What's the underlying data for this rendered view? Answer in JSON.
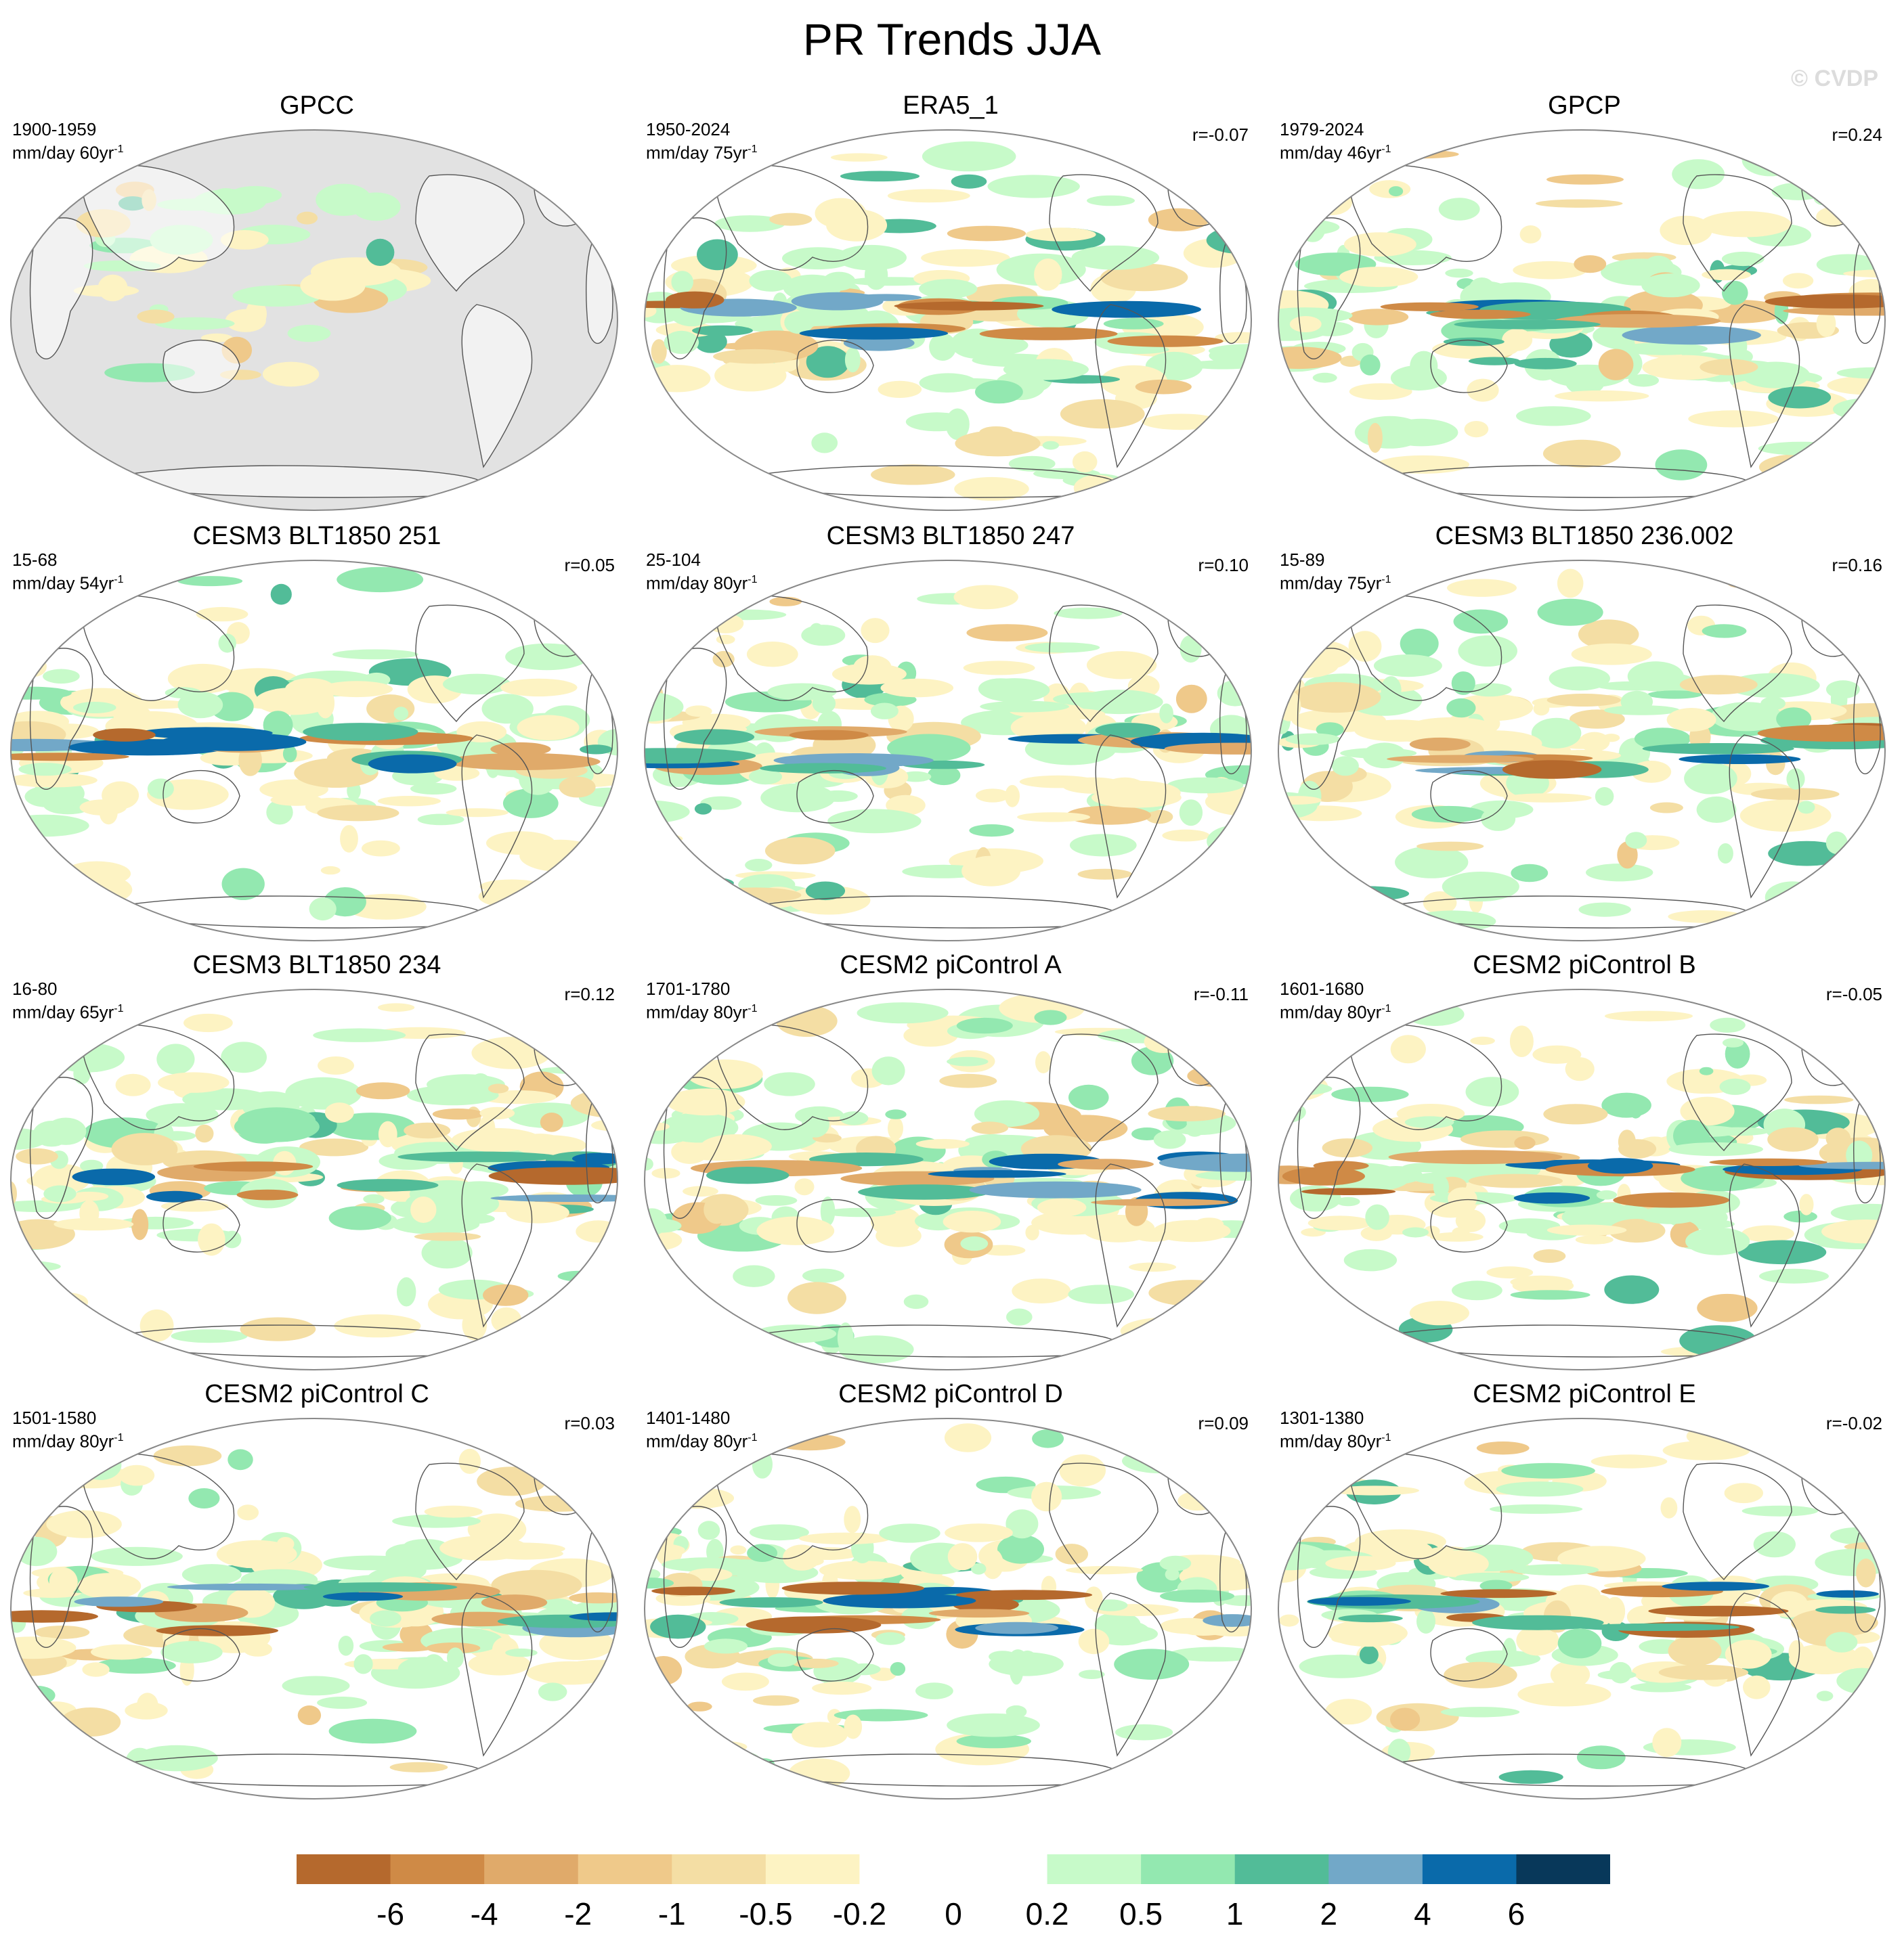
{
  "title": "PR Trends JJA",
  "watermark": "© CVDP",
  "colors": {
    "land_mask": "#e2e2e2",
    "outline": "#888888"
  },
  "panels": [
    {
      "title": "GPCC",
      "period": "1900-1959",
      "units_prefix": "mm/day 60yr",
      "units_exp": "-1",
      "corr": "",
      "masked": true
    },
    {
      "title": "ERA5_1",
      "period": "1950-2024",
      "units_prefix": "mm/day 75yr",
      "units_exp": "-1",
      "corr": "r=-0.07",
      "masked": false
    },
    {
      "title": "GPCP",
      "period": "1979-2024",
      "units_prefix": "mm/day 46yr",
      "units_exp": "-1",
      "corr": "r=0.24",
      "masked": false
    },
    {
      "title": "CESM3 BLT1850 251",
      "period": "15-68",
      "units_prefix": "mm/day 54yr",
      "units_exp": "-1",
      "corr": "r=0.05",
      "masked": false
    },
    {
      "title": "CESM3 BLT1850 247",
      "period": "25-104",
      "units_prefix": "mm/day 80yr",
      "units_exp": "-1",
      "corr": "r=0.10",
      "masked": false
    },
    {
      "title": "CESM3 BLT1850 236.002",
      "period": "15-89",
      "units_prefix": "mm/day 75yr",
      "units_exp": "-1",
      "corr": "r=0.16",
      "masked": false
    },
    {
      "title": "CESM3 BLT1850 234",
      "period": "16-80",
      "units_prefix": "mm/day 65yr",
      "units_exp": "-1",
      "corr": "r=0.12",
      "masked": false
    },
    {
      "title": "CESM2 piControl A",
      "period": "1701-1780",
      "units_prefix": "mm/day 80yr",
      "units_exp": "-1",
      "corr": "r=-0.11",
      "masked": false
    },
    {
      "title": "CESM2 piControl B",
      "period": "1601-1680",
      "units_prefix": "mm/day 80yr",
      "units_exp": "-1",
      "corr": "r=-0.05",
      "masked": false
    },
    {
      "title": "CESM2 piControl C",
      "period": "1501-1580",
      "units_prefix": "mm/day 80yr",
      "units_exp": "-1",
      "corr": "r=0.03",
      "masked": false
    },
    {
      "title": "CESM2 piControl D",
      "period": "1401-1480",
      "units_prefix": "mm/day 80yr",
      "units_exp": "-1",
      "corr": "r=0.09",
      "masked": false
    },
    {
      "title": "CESM2 piControl E",
      "period": "1301-1380",
      "units_prefix": "mm/day 80yr",
      "units_exp": "-1",
      "corr": "r=-0.02",
      "masked": false
    }
  ],
  "colorbar": {
    "colors": [
      "#b5692d",
      "#cf8a46",
      "#e0aa6a",
      "#efc98a",
      "#f4dea4",
      "#fdf3c3",
      "#ffffff",
      "#ffffff",
      "#c7fac9",
      "#93e8b0",
      "#52bc98",
      "#72a8c8",
      "#0a6aaa",
      "#08385a"
    ],
    "labels": [
      "-6",
      "-4",
      "-2",
      "-1",
      "-0.5",
      "-0.2",
      "0",
      "0.2",
      "0.5",
      "1",
      "2",
      "4",
      "6"
    ]
  }
}
